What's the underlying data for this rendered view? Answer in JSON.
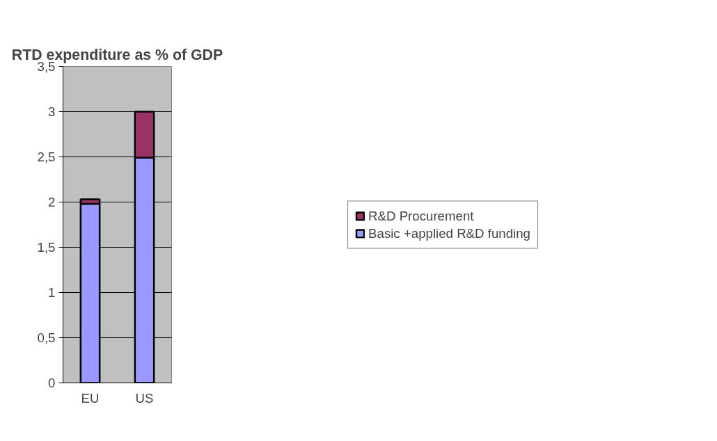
{
  "chart_data": {
    "type": "bar",
    "title": "RTD expenditure as % of GDP",
    "categories": [
      "EU",
      "US"
    ],
    "stacked": true,
    "series": [
      {
        "name": "Basic +applied R&D funding",
        "color": "#9999ff",
        "values": [
          1.98,
          2.49
        ]
      },
      {
        "name": "R&D Procurement",
        "color": "#993366",
        "values": [
          0.05,
          0.51
        ]
      }
    ],
    "ylim": [
      0,
      3.5
    ],
    "yticks": [
      0,
      {
        "value": 0.5,
        "label": "0,5"
      },
      1,
      {
        "value": 1.5,
        "label": "1,5"
      },
      2,
      {
        "value": 2.5,
        "label": "2,5"
      },
      3,
      {
        "value": 3.5,
        "label": "3,5"
      }
    ],
    "grid": "y",
    "legend": "right"
  }
}
